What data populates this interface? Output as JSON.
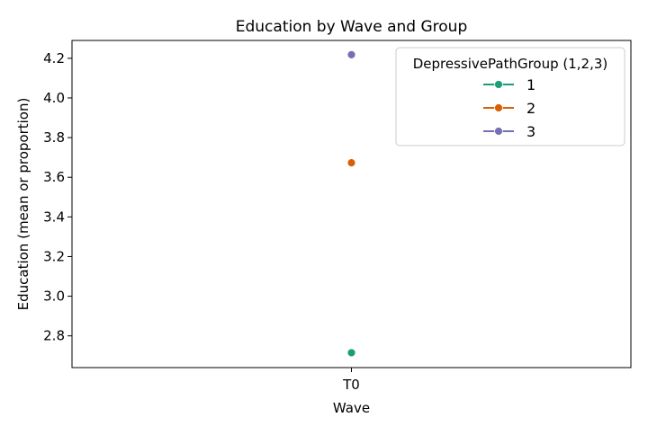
{
  "chart_data": {
    "type": "line",
    "title": "Education by Wave and Group",
    "xlabel": "Wave",
    "ylabel": "Education (mean or proportion)",
    "categories": [
      "T0"
    ],
    "ylim": [
      2.64,
      4.29
    ],
    "yticks": [
      2.8,
      3.0,
      3.2,
      3.4,
      3.6,
      3.8,
      4.0,
      4.2
    ],
    "grid": false,
    "legend": {
      "title": "DepressivePathGroup (1,2,3)",
      "placement": "top-right"
    },
    "series": [
      {
        "name": "1",
        "color": "#1b9e77",
        "values": [
          2.715
        ]
      },
      {
        "name": "2",
        "color": "#d95f02",
        "values": [
          3.673
        ]
      },
      {
        "name": "3",
        "color": "#7570b3",
        "values": [
          4.218
        ]
      }
    ]
  }
}
